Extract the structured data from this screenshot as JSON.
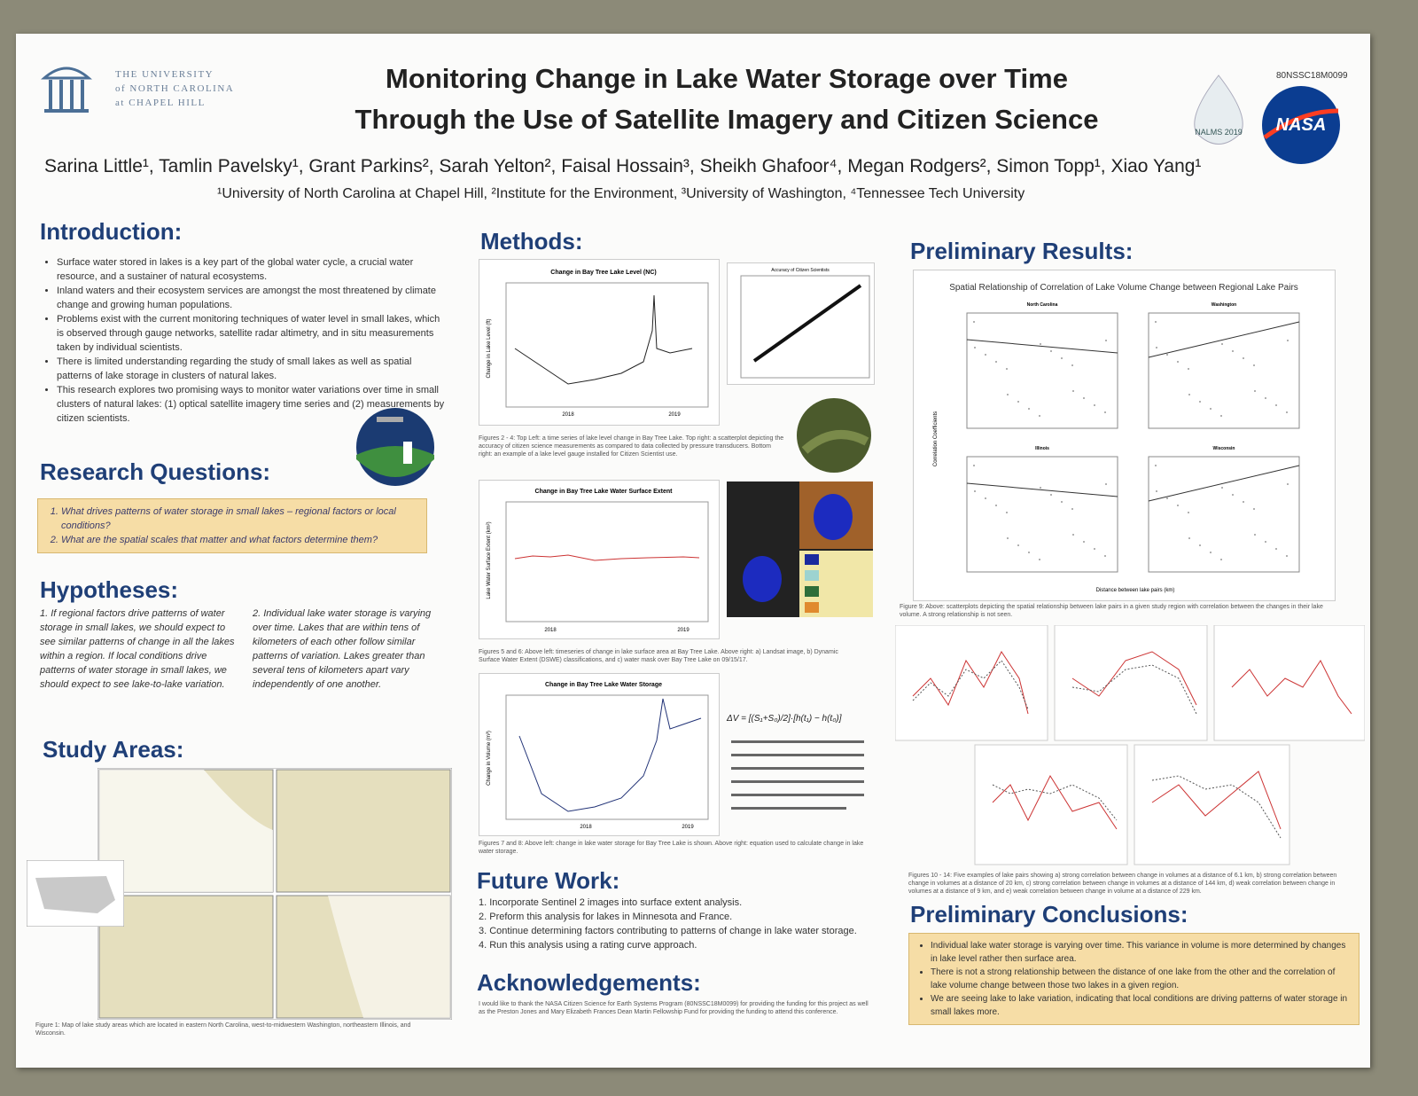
{
  "header": {
    "university": [
      "THE UNIVERSITY",
      "of NORTH CAROLINA",
      "at CHAPEL HILL"
    ],
    "title_lines": [
      "Monitoring Change in Lake Water Storage over Time",
      "Through the Use of Satellite Imagery and Citizen Science"
    ],
    "code": "80NSSC18M0099",
    "nalms": "NALMS 2019",
    "nasa": "NASA",
    "authors": "Sarina Little¹, Tamlin Pavelsky¹, Grant Parkins², Sarah Yelton², Faisal Hossain³, Sheikh Ghafoor⁴, Megan Rodgers², Simon Topp¹, Xiao Yang¹",
    "affiliations": "¹University of North Carolina at Chapel Hill, ²Institute for the Environment, ³University of Washington, ⁴Tennessee Tech University"
  },
  "introduction": {
    "heading": "Introduction:",
    "bullets": [
      "Surface water stored in lakes is a key part of the global water cycle, a crucial water resource, and a sustainer of natural ecosystems.",
      "Inland waters and their ecosystem services are amongst the most threatened by climate change and growing human populations.",
      "Problems exist with the current monitoring techniques of water level in small lakes, which is observed through gauge networks, satellite radar altimetry, and in situ measurements taken by individual scientists.",
      "There is limited understanding regarding the study of small lakes as well as spatial patterns of lake storage in clusters of natural lakes.",
      "This research explores two promising ways to monitor water variations over time in small clusters of natural lakes: (1) optical satellite imagery time series and (2) measurements by citizen scientists."
    ]
  },
  "research_questions": {
    "heading": "Research Questions:",
    "items": [
      "What drives patterns of water storage in small lakes – regional factors or local conditions?",
      "What are the spatial scales that matter and what factors determine them?"
    ]
  },
  "hypotheses": {
    "heading": "Hypotheses:",
    "items": [
      "1. If regional factors drive patterns of water storage in small lakes, we should expect to see similar patterns of change in all the lakes within a region. If local conditions drive patterns of water storage in small lakes, we should expect to see lake-to-lake variation.",
      "2. Individual lake water storage is varying over time. Lakes that are within tens of kilometers of each other follow similar patterns of variation. Lakes greater than several tens of kilometers apart vary independently of one another."
    ]
  },
  "study_areas": {
    "heading": "Study Areas:",
    "caption": "Figure 1: Map of lake study areas which are located in eastern North Carolina, west-to-midwestern Washington, northeastern Illinois, and Wisconsin."
  },
  "methods": {
    "heading": "Methods:",
    "chart_titles": [
      "Change in Bay Tree Lake Level (NC)",
      "Change in Bay Tree Lake Water Surface Extent",
      "Change in Bay Tree Lake Water Storage"
    ],
    "scatter_title": "Accuracy of Citizen Scientists",
    "years": [
      "2018",
      "2019"
    ],
    "captions": [
      "Figures 2 - 4: Top Left: a time series of lake level change in Bay Tree Lake. Top right: a scatterplot depicting the accuracy of citizen science measurements as compared to data collected by pressure transducers. Bottom right: an example of a lake level gauge installed for Citizen Scientist use.",
      "Figures 5 and 6: Above left: timeseries of change in lake surface area at Bay Tree Lake. Above right: a) Landsat image, b) Dynamic Surface Water Extent (DSWE) classifications, and c) water mask over Bay Tree Lake on 09/15/17.",
      "Figures 7 and 8: Above left: change in lake water storage for Bay Tree Lake is shown. Above right: equation used to calculate change in lake water storage."
    ],
    "y_labels": [
      "Change in Lake Level (ft)",
      "Lake Water Surface Extent (km²)",
      "Change in Volume (m³)"
    ]
  },
  "future_work": {
    "heading": "Future Work:",
    "items": [
      "1. Incorporate Sentinel 2 images into surface extent analysis.",
      "2. Preform this analysis for lakes in Minnesota and France.",
      "3. Continue determining factors contributing to patterns of change in lake water storage.",
      "4. Run this analysis using a rating curve approach."
    ]
  },
  "acknowledgements": {
    "heading": "Acknowledgements:",
    "text": "I would like to thank the NASA Citizen Science for Earth Systems Program (80NSSC18M0099) for providing the funding for this project as well as the Preston Jones and Mary Elizabeth Frances Dean Martin Fellowship Fund for providing the funding to attend this conference."
  },
  "results": {
    "heading": "Preliminary Results:",
    "subtitle": "Spatial Relationship of Correlation of Lake Volume Change between Regional Lake Pairs",
    "panels": [
      "North Carolina",
      "Washington",
      "Illinois",
      "Wisconsin"
    ],
    "x_label": "Distance between lake pairs (km)",
    "y_label": "Correlation Coefficients",
    "caption_top": "Figure 9: Above: scatterplots depicting the spatial relationship between lake pairs in a given study region with correlation between the changes in their lake volume. A strong relationship is not seen.",
    "caption_bottom": "Figures 10 - 14: Five examples of lake pairs showing a) strong correlation between change in volumes at a distance of 6.1 km, b) strong correlation between change in volumes at a distance of 20 km, c) strong correlation between change in volumes at a distance of 144 km, d) weak correlation between change in volumes at a distance of 9 km, and e) weak correlation between change in volume at a distance of 229 km."
  },
  "conclusions": {
    "heading": "Preliminary Conclusions:",
    "bullets": [
      "Individual lake water storage is varying over time. This variance in volume is more determined by changes in lake level rather then surface area.",
      "There is not a strong relationship between the distance of one lake from the other and the correlation of lake volume change between those two lakes in a given region.",
      "We are seeing lake to lake variation, indicating that local conditions are driving patterns of water storage in small lakes more."
    ]
  }
}
